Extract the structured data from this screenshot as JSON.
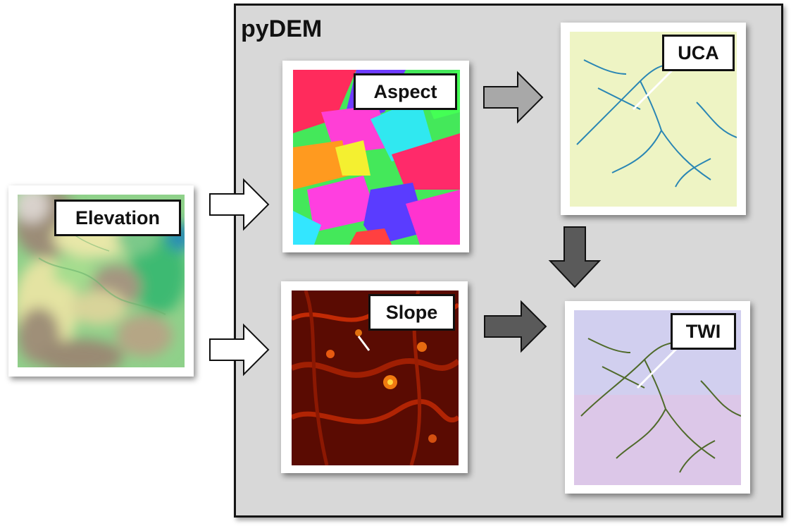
{
  "container": {
    "title": "pyDEM"
  },
  "panels": {
    "elevation": {
      "label": "Elevation"
    },
    "aspect": {
      "label": "Aspect"
    },
    "slope": {
      "label": "Slope"
    },
    "uca": {
      "label": "UCA"
    },
    "twi": {
      "label": "TWI"
    }
  },
  "colors": {
    "container_fill": "#d8d8d8",
    "container_border": "#151515",
    "arrow_white": "#ffffff",
    "arrow_light_gray": "#a8a8a8",
    "arrow_dark_gray": "#5a5a5a"
  }
}
